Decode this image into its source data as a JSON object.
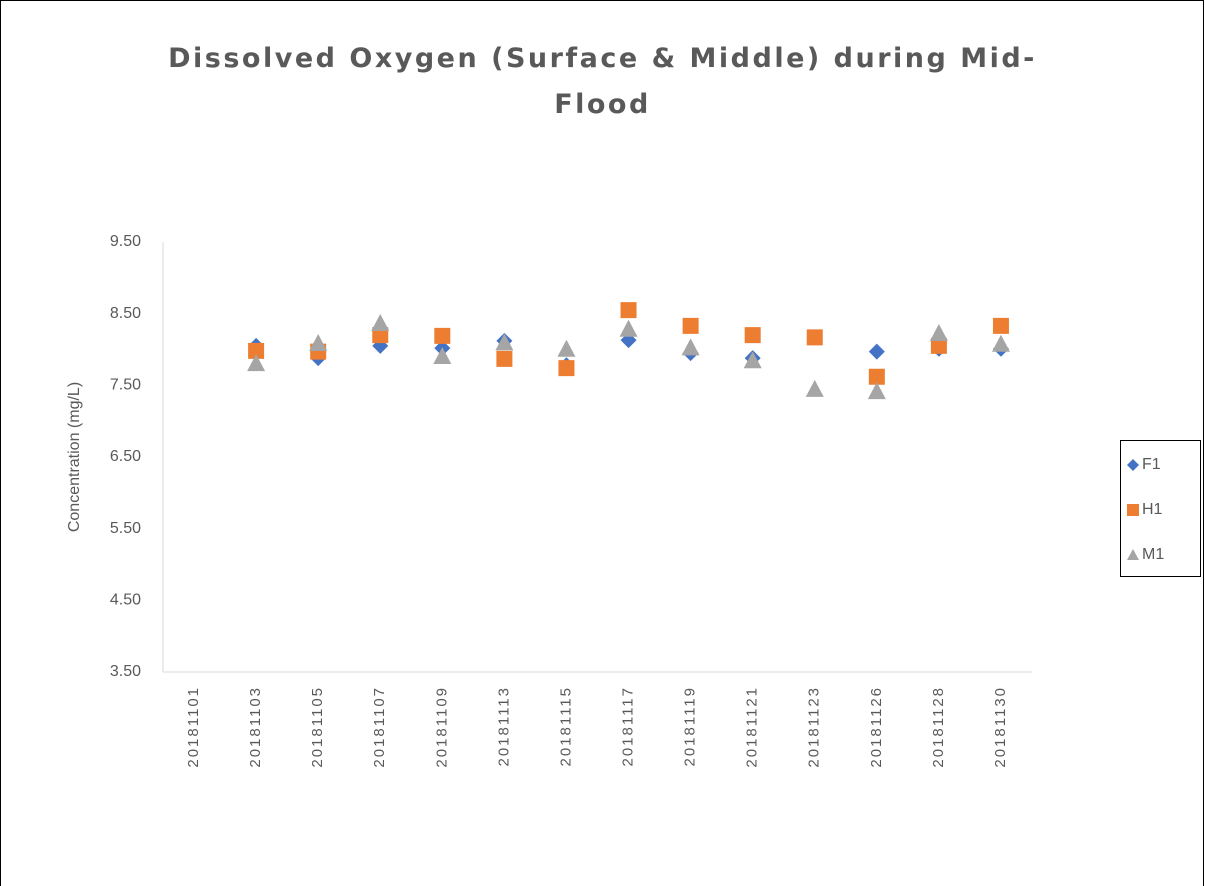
{
  "chart_data": {
    "type": "scatter",
    "title": "Dissolved Oxygen (Surface & Middle) during Mid-Flood",
    "y_label": "Concentration (mg/L)",
    "categories": [
      "20181101",
      "20181103",
      "20181105",
      "20181107",
      "20181109",
      "20181113",
      "20181115",
      "20181117",
      "20181119",
      "20181121",
      "20181123",
      "20181126",
      "20181128",
      "20181130"
    ],
    "series": [
      {
        "name": "F1",
        "color": "#4472c4",
        "values": [
          null,
          8.05,
          7.88,
          8.05,
          8.02,
          8.12,
          7.78,
          8.13,
          7.95,
          7.88,
          8.17,
          7.97,
          8.01,
          8.01
        ]
      },
      {
        "name": "H1",
        "color": "#ed7d31",
        "values": [
          null,
          7.98,
          7.97,
          8.2,
          8.19,
          7.87,
          7.74,
          8.55,
          8.33,
          8.2,
          8.17,
          7.62,
          8.05,
          8.33
        ]
      },
      {
        "name": "M1",
        "color": "#a5a5a5",
        "values": [
          null,
          7.81,
          8.09,
          8.37,
          7.91,
          8.1,
          8.01,
          8.29,
          8.03,
          7.85,
          7.45,
          7.42,
          8.23,
          8.08
        ]
      }
    ],
    "ylim": [
      3.5,
      9.5
    ],
    "yticks": [
      {
        "value": 3.5,
        "label": "3.50"
      },
      {
        "value": 4.5,
        "label": "4.50"
      },
      {
        "value": 5.5,
        "label": "5.50"
      },
      {
        "value": 6.5,
        "label": "6.50"
      },
      {
        "value": 7.5,
        "label": "7.50"
      },
      {
        "value": 8.5,
        "label": "8.50"
      },
      {
        "value": 9.5,
        "label": "9.50"
      }
    ],
    "grid": false,
    "legend": "right"
  }
}
